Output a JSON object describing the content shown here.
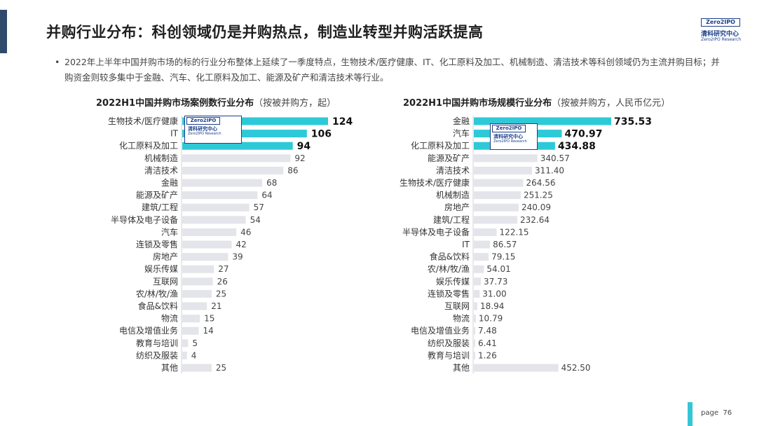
{
  "header": {
    "title": "并购行业分布：科创领域仍是并购热点，制造业转型并购活跃提高",
    "logo_top": "Zero2IPO",
    "logo_cn": "清科研究中心",
    "logo_en": "Zero2IPO Research"
  },
  "bullet": {
    "marker": "•",
    "text": "2022年上半年中国并购市场的标的行业分布整体上延续了一季度特点，生物技术/医疗健康、IT、化工原料及加工、机械制造、清洁技术等科创领域仍为主流并购目标；并购资金则较多集中于金融、汽车、化工原料及加工、能源及矿产和清洁技术等行业。"
  },
  "watermark": {
    "top": "Zero2IPO",
    "cn": "清科研究中心",
    "en": "Zero2IPO Research"
  },
  "footer": {
    "page_label": "page",
    "page_number": "76"
  },
  "colors": {
    "highlight": "#2ec9d8",
    "bar": "#e3e5ea",
    "label_highlight": "#111111",
    "label_normal": "#444444",
    "accent": "#35c6d6"
  },
  "chart_data": [
    {
      "type": "bar",
      "orientation": "horizontal",
      "title": "2022H1中国并购市场案例数行业分布",
      "subtitle": "（按被并购方，起）",
      "categories": [
        "生物技术/医疗健康",
        "IT",
        "化工原料及加工",
        "机械制造",
        "清洁技术",
        "金融",
        "能源及矿产",
        "建筑/工程",
        "半导体及电子设备",
        "汽车",
        "连锁及零售",
        "房地产",
        "娱乐传媒",
        "互联网",
        "农/林/牧/渔",
        "食品&饮料",
        "物流",
        "电信及增值业务",
        "教育与培训",
        "纺织及服装",
        "其他"
      ],
      "values": [
        124,
        106,
        94,
        92,
        86,
        68,
        64,
        57,
        54,
        46,
        42,
        39,
        27,
        26,
        25,
        21,
        15,
        14,
        5,
        4,
        25
      ],
      "value_labels": [
        "124",
        "106",
        "94",
        "92",
        "86",
        "68",
        "64",
        "57",
        "54",
        "46",
        "42",
        "39",
        "27",
        "26",
        "25",
        "21",
        "15",
        "14",
        "5",
        "4",
        "25"
      ],
      "highlight_top": 3,
      "xlim": [
        0,
        124
      ]
    },
    {
      "type": "bar",
      "orientation": "horizontal",
      "title": "2022H1中国并购市场规模行业分布",
      "subtitle": "（按被并购方，人民币亿元）",
      "categories": [
        "金融",
        "汽车",
        "化工原料及加工",
        "能源及矿产",
        "清洁技术",
        "生物技术/医疗健康",
        "机械制造",
        "房地产",
        "建筑/工程",
        "半导体及电子设备",
        "IT",
        "食品&饮料",
        "农/林/牧/渔",
        "娱乐传媒",
        "连锁及零售",
        "互联网",
        "物流",
        "电信及增值业务",
        "纺织及服装",
        "教育与培训",
        "其他"
      ],
      "values": [
        735.53,
        470.97,
        434.88,
        340.57,
        311.4,
        264.56,
        251.25,
        240.09,
        232.64,
        122.15,
        86.57,
        79.15,
        54.01,
        37.73,
        31.0,
        18.94,
        10.79,
        7.48,
        6.41,
        1.26,
        452.5
      ],
      "value_labels": [
        "735.53",
        "470.97",
        "434.88",
        "340.57",
        "311.40",
        "264.56",
        "251.25",
        "240.09",
        "232.64",
        "122.15",
        "86.57",
        "79.15",
        "54.01",
        "37.73",
        "31.00",
        "18.94",
        "10.79",
        "7.48",
        "6.41",
        "1.26",
        "452.50"
      ],
      "highlight_top": 3,
      "xlim": [
        0,
        735.53
      ]
    }
  ]
}
